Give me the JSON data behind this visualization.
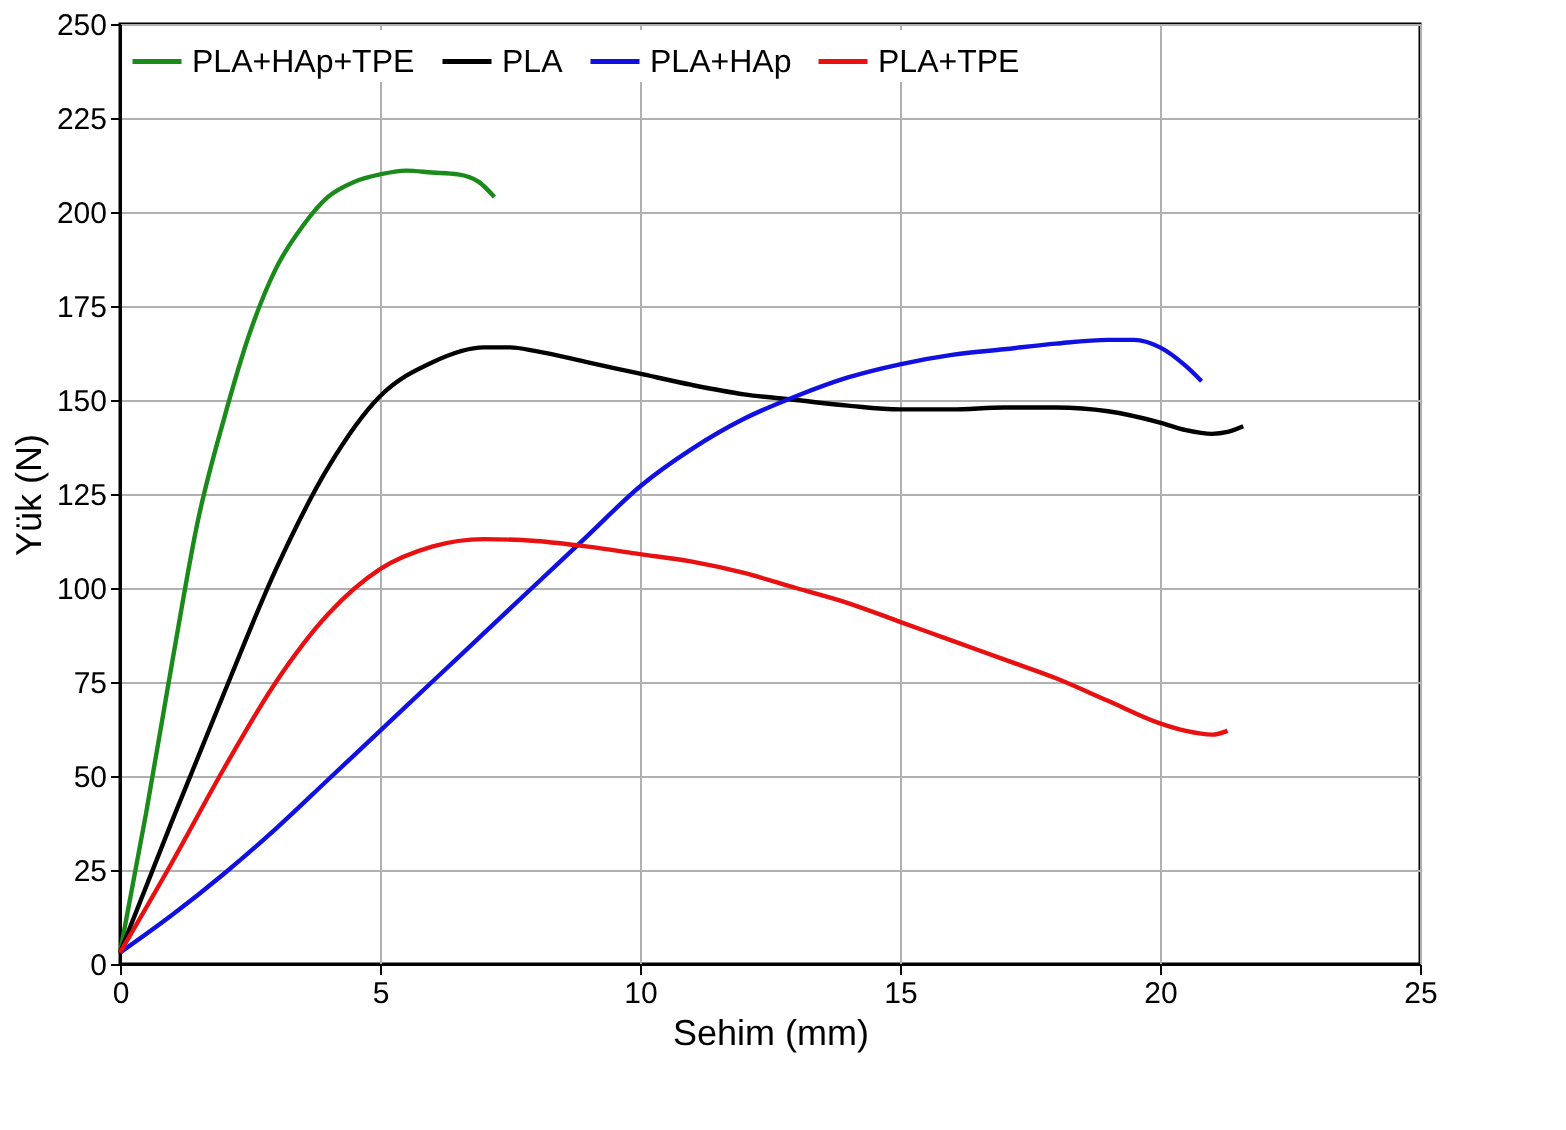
{
  "chart_data": {
    "type": "line",
    "xlabel": "Sehim (mm)",
    "ylabel": "Yük (N)",
    "xlim": [
      0,
      25
    ],
    "xticks": [
      0,
      5,
      10,
      15,
      20,
      25
    ],
    "ylim": [
      0,
      250
    ],
    "yticks": [
      0,
      25,
      50,
      75,
      100,
      125,
      150,
      175,
      200,
      225,
      250
    ],
    "grid": true,
    "legend": "top left",
    "marker": "none",
    "line_style": "solid",
    "series": [
      {
        "name": "PLA+HAp+TPE",
        "color": "#1a8a1a",
        "x": [
          0,
          0.5,
          1,
          1.5,
          2,
          2.5,
          3,
          3.5,
          4,
          4.5,
          5,
          5.5,
          6,
          6.5,
          6.9,
          7.2
        ],
        "values": [
          3,
          40,
          80,
          118,
          145,
          168,
          185,
          196,
          204,
          208,
          210,
          211,
          210.5,
          210,
          208,
          204
        ]
      },
      {
        "name": "PLA",
        "color": "#000000",
        "x": [
          0,
          1,
          2,
          3,
          4,
          5,
          6,
          7,
          7.5,
          8,
          9,
          10,
          11,
          12,
          13,
          14,
          15,
          16,
          17,
          18,
          19,
          20,
          20.5,
          21,
          21.3,
          21.6
        ],
        "values": [
          3,
          38,
          72,
          105,
          132,
          151,
          160,
          164,
          164,
          163,
          160,
          157,
          154,
          151.5,
          150,
          148.5,
          147.5,
          147.5,
          148,
          148,
          147,
          144,
          142,
          141,
          141.5,
          143
        ]
      },
      {
        "name": "PLA+HAp",
        "color": "#1010e0",
        "x": [
          0,
          1,
          2,
          3,
          4,
          5,
          6,
          7,
          8,
          9,
          10,
          11,
          12,
          13,
          14,
          15,
          16,
          17,
          18,
          19,
          19.5,
          20,
          20.5,
          20.8
        ],
        "values": [
          3,
          13,
          24,
          36,
          49,
          62,
          75,
          88,
          101,
          114,
          127,
          137,
          145,
          151,
          156,
          159.5,
          162,
          163.5,
          165,
          166,
          166,
          164,
          159,
          155
        ]
      },
      {
        "name": "PLA+TPE",
        "color": "#e81010",
        "x": [
          0,
          1,
          2,
          3,
          4,
          5,
          6,
          7,
          8,
          9,
          10,
          11,
          12,
          13,
          14,
          15,
          16,
          17,
          18,
          19,
          20,
          20.5,
          21,
          21.3
        ],
        "values": [
          3,
          27,
          52,
          75,
          93,
          105,
          111,
          113,
          112.5,
          111,
          109,
          107,
          104,
          100,
          96,
          91,
          86,
          81,
          76,
          70,
          64,
          62,
          61,
          62
        ]
      }
    ]
  }
}
